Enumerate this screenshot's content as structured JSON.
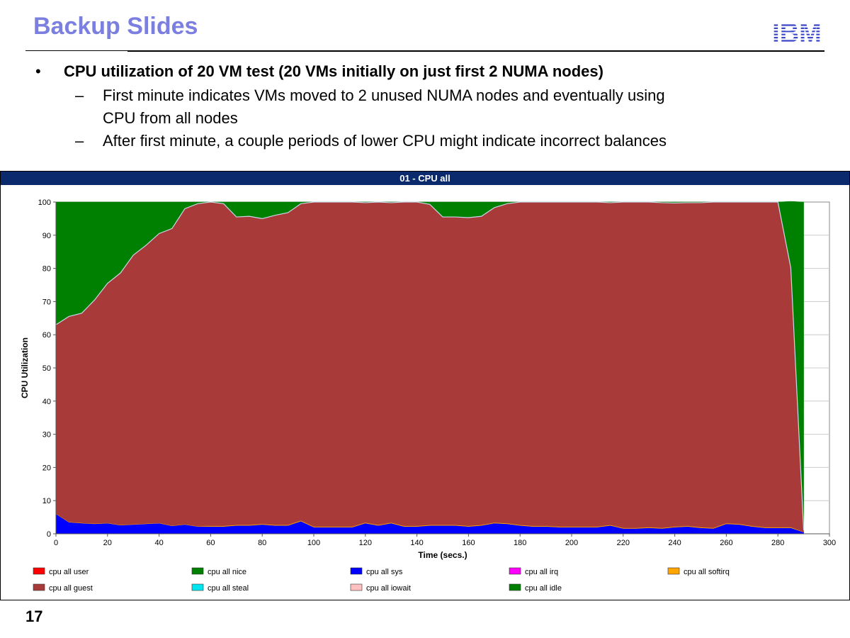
{
  "slide": {
    "title": "Backup Slides",
    "logo_text": "IBM",
    "page_number": "17"
  },
  "bullets": {
    "main": "CPU utilization of 20 VM test (20 VMs initially on just first 2 NUMA nodes)",
    "sub1_line1": "First minute indicates VMs moved to 2 unused NUMA nodes and eventually using",
    "sub1_line2": "CPU from all nodes",
    "sub2": "After first minute, a couple periods of lower CPU might indicate incorrect balances"
  },
  "chart_data": {
    "type": "area",
    "title": "01 - CPU all",
    "xlabel": "Time (secs.)",
    "ylabel": "CPU Utilization",
    "xlim": [
      0,
      300
    ],
    "ylim": [
      0,
      100
    ],
    "xticks": [
      0,
      20,
      40,
      60,
      80,
      100,
      120,
      140,
      160,
      180,
      200,
      220,
      240,
      260,
      280,
      300
    ],
    "yticks": [
      0,
      10,
      20,
      30,
      40,
      50,
      60,
      70,
      80,
      90,
      100
    ],
    "grid": true,
    "legend_placement": "bottom",
    "x": [
      0,
      5,
      10,
      15,
      20,
      25,
      30,
      35,
      40,
      45,
      50,
      55,
      60,
      65,
      70,
      75,
      80,
      85,
      90,
      95,
      100,
      105,
      110,
      115,
      120,
      125,
      130,
      135,
      140,
      145,
      150,
      155,
      160,
      165,
      170,
      175,
      180,
      185,
      190,
      195,
      200,
      205,
      210,
      215,
      220,
      225,
      230,
      235,
      240,
      245,
      250,
      255,
      260,
      265,
      270,
      275,
      280,
      285,
      290
    ],
    "series": [
      {
        "name": "cpu all user",
        "color": "#ff0000",
        "values": [
          0,
          0,
          0,
          0,
          0,
          0,
          0,
          0,
          0,
          0,
          0,
          0,
          0,
          0,
          0,
          0,
          0,
          0,
          0,
          0,
          0,
          0,
          0,
          0,
          0,
          0,
          0,
          0,
          0,
          0,
          0,
          0,
          0,
          0,
          0,
          0,
          0,
          0,
          0,
          0,
          0,
          0,
          0,
          0,
          0,
          0,
          0,
          0,
          0,
          0,
          0,
          0,
          0,
          0,
          0,
          0,
          0,
          0,
          0
        ]
      },
      {
        "name": "cpu all nice",
        "color": "#008000",
        "values": [
          0,
          0,
          0,
          0,
          0,
          0,
          0,
          0,
          0,
          0,
          0,
          0,
          0,
          0,
          0,
          0,
          0,
          0,
          0,
          0,
          0,
          0,
          0,
          0,
          0,
          0,
          0,
          0,
          0,
          0,
          0,
          0,
          0,
          0,
          0,
          0,
          0,
          0,
          0,
          0,
          0,
          0,
          0,
          0,
          0,
          0,
          0,
          0,
          0,
          0,
          0,
          0,
          0,
          0,
          0,
          0,
          0,
          0,
          0
        ]
      },
      {
        "name": "cpu all sys",
        "color": "#0000ff",
        "values": [
          6,
          3.5,
          3.2,
          3,
          3.2,
          2.6,
          2.8,
          3,
          3.2,
          2.4,
          2.8,
          2.2,
          2.2,
          2.2,
          2.5,
          2.5,
          2.8,
          2.5,
          2.5,
          3.8,
          2,
          2,
          2,
          2,
          3.2,
          2.5,
          3.2,
          2.2,
          2.2,
          2.5,
          2.5,
          2.5,
          2.2,
          2.5,
          3.2,
          3,
          2.5,
          2.2,
          2.2,
          2,
          2,
          2,
          2,
          2.5,
          1.6,
          1.6,
          1.8,
          1.6,
          2,
          2.2,
          1.8,
          1.6,
          3,
          2.8,
          2.2,
          1.8,
          1.8,
          1.8,
          0.5
        ]
      },
      {
        "name": "cpu all irq",
        "color": "#ff00ff",
        "values": [
          0,
          0,
          0,
          0,
          0,
          0,
          0,
          0,
          0,
          0,
          0,
          0,
          0,
          0,
          0,
          0,
          0,
          0,
          0,
          0,
          0,
          0,
          0,
          0,
          0,
          0,
          0,
          0,
          0,
          0,
          0,
          0,
          0,
          0,
          0,
          0,
          0,
          0,
          0,
          0,
          0,
          0,
          0,
          0,
          0,
          0,
          0,
          0,
          0,
          0,
          0,
          0,
          0,
          0,
          0,
          0,
          0,
          0,
          0
        ]
      },
      {
        "name": "cpu all softirq",
        "color": "#ffa500",
        "values": [
          0.1,
          0.1,
          0.1,
          0.1,
          0.1,
          0.1,
          0.1,
          0.1,
          0.1,
          0.1,
          0.1,
          0.1,
          0.2,
          0.2,
          0.2,
          0.2,
          0.2,
          0.2,
          0.2,
          0.2,
          0.2,
          0.2,
          0.2,
          0.2,
          0.2,
          0.2,
          0.2,
          0.2,
          0.2,
          0.2,
          0.2,
          0.2,
          0.2,
          0.2,
          0.2,
          0.2,
          0.2,
          0.2,
          0.2,
          0.2,
          0.2,
          0.2,
          0.2,
          0.2,
          0.2,
          0.2,
          0.2,
          0.2,
          0.2,
          0.2,
          0.2,
          0.2,
          0.2,
          0.2,
          0.2,
          0.2,
          0.2,
          0.2,
          0.1
        ]
      },
      {
        "name": "cpu all guest",
        "color": "#a83a3a",
        "values": [
          56.9,
          61.9,
          63.2,
          67.4,
          72.2,
          75.9,
          81.1,
          83.9,
          87.2,
          89.5,
          95.1,
          97.2,
          97.6,
          97.1,
          92.8,
          93,
          92,
          93.3,
          94.1,
          95.5,
          97.8,
          97.8,
          97.8,
          97.8,
          96.4,
          97.3,
          96.4,
          97.6,
          97.6,
          96.6,
          92.8,
          92.8,
          92.9,
          93,
          94.9,
          96.3,
          97.3,
          97.6,
          97.6,
          97.8,
          97.8,
          97.8,
          97.8,
          97.1,
          98.2,
          98.2,
          98,
          98,
          97.5,
          97.4,
          97.8,
          98.2,
          96.8,
          97,
          97.6,
          98,
          98,
          78.2,
          0.4
        ]
      },
      {
        "name": "cpu all steal",
        "color": "#00e5ee",
        "values": [
          0,
          0,
          0,
          0,
          0,
          0,
          0,
          0,
          0,
          0,
          0,
          0,
          0,
          0,
          0,
          0,
          0,
          0,
          0,
          0,
          0,
          0,
          0,
          0,
          0,
          0,
          0,
          0,
          0,
          0,
          0,
          0,
          0,
          0,
          0,
          0,
          0,
          0,
          0,
          0,
          0,
          0,
          0,
          0,
          0,
          0,
          0,
          0,
          0,
          0,
          0,
          0,
          0,
          0,
          0,
          0,
          0,
          0,
          0
        ]
      },
      {
        "name": "cpu all iowait",
        "color": "#ffc0c0",
        "values": [
          0,
          0,
          0,
          0,
          0,
          0,
          0,
          0,
          0,
          0,
          0,
          0,
          0,
          0,
          0,
          0,
          0,
          0,
          0,
          0,
          0,
          0,
          0,
          0,
          0,
          0,
          0,
          0,
          0,
          0,
          0,
          0,
          0,
          0,
          0,
          0,
          0,
          0,
          0,
          0,
          0,
          0,
          0,
          0,
          0,
          0,
          0,
          0,
          0,
          0,
          0,
          0,
          0,
          0,
          0,
          0,
          0,
          0,
          0
        ]
      },
      {
        "name": "cpu all idle",
        "color": "#008000",
        "values": [
          37,
          34.5,
          33.5,
          29.5,
          24.5,
          21.4,
          16,
          13,
          9.5,
          8,
          2,
          0.5,
          0,
          0.5,
          4.5,
          4.3,
          5,
          4,
          3.2,
          0.5,
          0,
          0,
          0,
          0,
          0.2,
          0,
          0.2,
          0,
          0,
          0.7,
          4.5,
          4.5,
          4.7,
          4.3,
          1.7,
          0.5,
          0,
          0,
          0,
          0,
          0,
          0,
          0,
          0.2,
          0,
          0,
          0,
          0.2,
          0.3,
          0.2,
          0.2,
          0,
          0,
          0,
          0,
          0,
          0,
          20,
          99
        ]
      }
    ]
  }
}
